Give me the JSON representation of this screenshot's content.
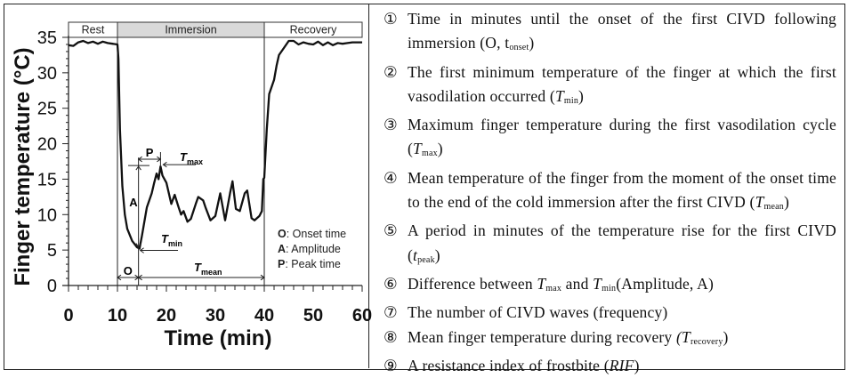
{
  "chart_data": {
    "type": "line",
    "xlabel": "Time (min)",
    "ylabel": "Finger temperature (°C)",
    "xlim": [
      0,
      60
    ],
    "ylim": [
      0,
      35
    ],
    "xticks": [
      "0",
      "10",
      "20",
      "30",
      "40",
      "50",
      "60"
    ],
    "yticks": [
      "0",
      "5",
      "10",
      "15",
      "20",
      "25",
      "30",
      "35"
    ],
    "phases": [
      {
        "label": "Rest",
        "start": 0,
        "end": 10,
        "fill": "#ffffff"
      },
      {
        "label": "Immersion",
        "start": 10,
        "end": 40,
        "fill": "#d9d9d9"
      },
      {
        "label": "Recovery",
        "start": 40,
        "end": 60,
        "fill": "#ffffff"
      }
    ],
    "series": [
      {
        "name": "Finger temperature",
        "color": "#111111",
        "x": [
          0,
          1,
          2,
          3,
          4,
          5,
          6,
          7,
          8,
          9,
          10,
          10.2,
          10.5,
          11,
          11.5,
          12,
          13,
          14,
          14.5,
          15,
          16,
          17,
          17.5,
          18,
          18.4,
          18.8,
          19.2,
          20,
          21,
          21.7,
          22.5,
          23,
          23.5,
          24.3,
          25,
          26,
          26.5,
          27.5,
          28,
          29,
          30,
          31,
          32,
          33,
          33.5,
          34.2,
          35,
          36,
          36.5,
          37.4,
          38,
          39,
          39.5,
          39.8,
          40,
          40.5,
          41,
          42,
          42.5,
          43,
          44,
          45,
          46,
          47,
          48,
          49,
          50,
          51,
          52,
          53,
          54,
          55,
          56,
          57,
          58,
          60
        ],
        "y": [
          33.9,
          33.8,
          34.3,
          34.5,
          34.2,
          34.4,
          34.1,
          34.4,
          34.2,
          34.1,
          34.0,
          32,
          22,
          14,
          10,
          8,
          6.3,
          5.4,
          5.2,
          7,
          11,
          13,
          14.5,
          15.8,
          15,
          16.8,
          15.5,
          14.5,
          11.5,
          12.8,
          11,
          10,
          10.5,
          9,
          9.4,
          11.5,
          12.5,
          12,
          11,
          9.2,
          9.8,
          13,
          9.2,
          13,
          14.7,
          10.8,
          10.5,
          13,
          13.4,
          9.5,
          9.2,
          9.8,
          10.5,
          15,
          15.2,
          22,
          27,
          29,
          31,
          32.5,
          33.5,
          34.5,
          34.5,
          34,
          34.3,
          34.1,
          34,
          34.4,
          33.9,
          34.3,
          33.9,
          34.2,
          34.1,
          34.2,
          34.3,
          34.3
        ]
      }
    ],
    "annotations": {
      "onset": {
        "label": "O",
        "x_start": 10,
        "x_end": 14.3
      },
      "mean": {
        "label": "T",
        "sub": "mean",
        "x_start": 14.3,
        "x_end": 40
      },
      "amplitude": {
        "label": "A",
        "x": 14.3,
        "y_start": 5.2,
        "y_end": 16.8
      },
      "peak": {
        "label": "P",
        "x_start": 14.3,
        "x_end": 18.8
      },
      "tmax": {
        "label": "T",
        "sub": "max",
        "x": 18.8,
        "y": 16.8
      },
      "tmin": {
        "label": "T",
        "sub": "min",
        "x": 14.3,
        "y": 5.2
      }
    },
    "legend": [
      {
        "key": "O",
        "text": ": Onset time"
      },
      {
        "key": "A",
        "text": ": Amplitude"
      },
      {
        "key": "P",
        "text": ": Peak time"
      }
    ]
  },
  "definitions": [
    {
      "num": "①",
      "parts": [
        "Time in minutes until the onset of the first CIVD following immersion (O, t",
        "onset",
        ")"
      ]
    },
    {
      "num": "②",
      "parts": [
        "The first minimum temperature of the finger at which the first vasodilation occurred (",
        "T",
        "min",
        ")"
      ]
    },
    {
      "num": "③",
      "parts": [
        "Maximum finger temperature during the first vasodilation cycle (",
        "T",
        "max",
        ")"
      ]
    },
    {
      "num": "④",
      "parts": [
        "Mean temperature of the finger from the moment of the onset time to the end of the cold immersion after the first CIVD (",
        "T",
        "mean",
        ")"
      ]
    },
    {
      "num": "⑤",
      "parts": [
        "A period in minutes of the temperature rise for the first CIVD (",
        "t",
        "peak",
        ")"
      ]
    },
    {
      "num": "⑥",
      "parts": [
        "Difference between ",
        "T",
        "max",
        " and ",
        "T",
        "min",
        "(Amplitude, A)"
      ]
    },
    {
      "num": "⑦",
      "parts": [
        "The number of CIVD waves (frequency)"
      ]
    },
    {
      "num": "⑧",
      "parts": [
        "Mean finger temperature during recovery ",
        "(T",
        "recovery",
        ")"
      ]
    },
    {
      "num": "⑨",
      "parts": [
        "A resistance index of frostbite (",
        "RIF",
        ")"
      ]
    }
  ]
}
